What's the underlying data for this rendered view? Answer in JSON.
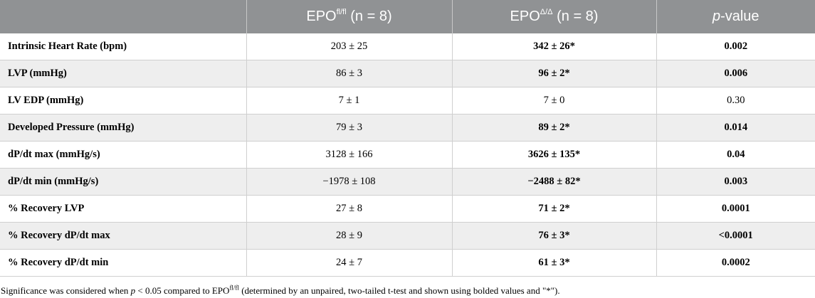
{
  "header": {
    "col1": {
      "base": "EPO",
      "sup": "fl/fl",
      "suffix": " (n = 8)"
    },
    "col2": {
      "base": "EPO",
      "sup": "Δ/Δ",
      "suffix": " (n = 8)"
    },
    "col3": {
      "italic": "p",
      "suffix": "-value"
    }
  },
  "rows": [
    {
      "label": "Intrinsic Heart Rate (bpm)",
      "fl": "203 ± 25",
      "ko": "342 ± 26*",
      "p": "0.002",
      "ko_bold": true,
      "p_bold": true
    },
    {
      "label": "LVP (mmHg)",
      "fl": "86 ± 3",
      "ko": "96 ± 2*",
      "p": "0.006",
      "ko_bold": true,
      "p_bold": true
    },
    {
      "label": "LV EDP (mmHg)",
      "fl": "7 ± 1",
      "ko": "7 ± 0",
      "p": "0.30",
      "ko_bold": false,
      "p_bold": false
    },
    {
      "label": "Developed Pressure (mmHg)",
      "fl": "79 ± 3",
      "ko": "89 ± 2*",
      "p": "0.014",
      "ko_bold": true,
      "p_bold": true
    },
    {
      "label": "dP/dt max (mmHg/s)",
      "fl": "3128 ± 166",
      "ko": "3626 ± 135*",
      "p": "0.04",
      "ko_bold": true,
      "p_bold": true
    },
    {
      "label": "dP/dt min (mmHg/s)",
      "fl": "−1978 ± 108",
      "ko": "−2488 ± 82*",
      "p": "0.003",
      "ko_bold": true,
      "p_bold": true
    },
    {
      "label": "% Recovery LVP",
      "fl": "27 ± 8",
      "ko": "71 ± 2*",
      "p": "0.0001",
      "ko_bold": true,
      "p_bold": true
    },
    {
      "label": "% Recovery dP/dt max",
      "fl": "28 ± 9",
      "ko": "76 ± 3*",
      "p": "<0.0001",
      "ko_bold": true,
      "p_bold": true
    },
    {
      "label": "% Recovery dP/dt min",
      "fl": "24 ± 7",
      "ko": "61 ± 3*",
      "p": "0.0002",
      "ko_bold": true,
      "p_bold": true
    }
  ],
  "footnote": {
    "part1": "Significance was considered when ",
    "p_italic": "p",
    "part2": " < 0.05 compared to EPO",
    "sup": "fl/fl",
    "part3": " (determined by an unpaired, two-tailed t-test and shown using bolded values and \"*\")."
  }
}
